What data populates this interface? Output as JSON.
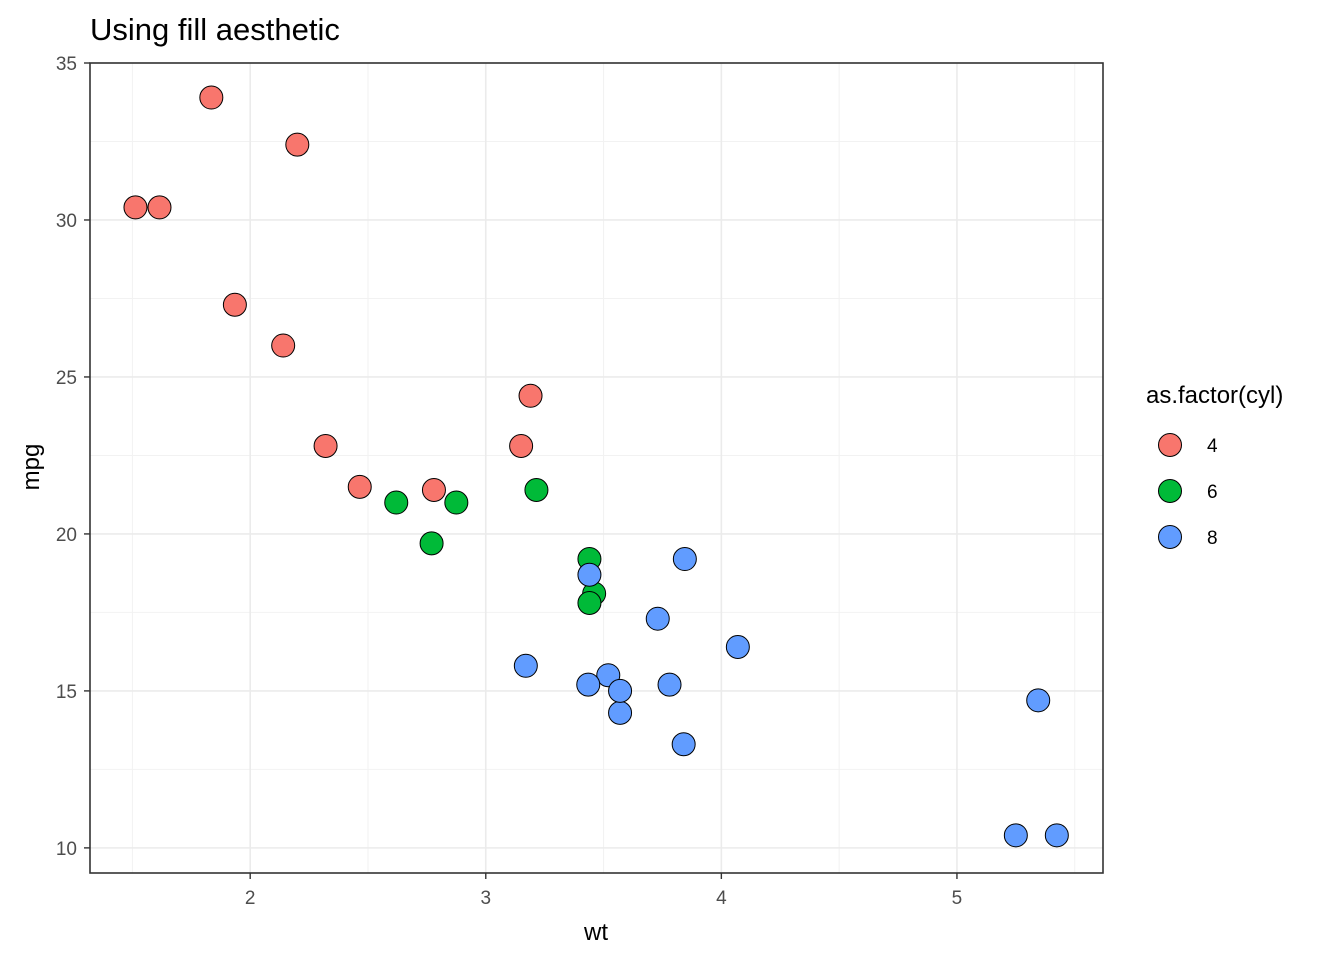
{
  "chart_data": {
    "type": "scatter",
    "title": "Using fill aesthetic",
    "xlabel": "wt",
    "ylabel": "mpg",
    "xlim": [
      1.32,
      5.62
    ],
    "ylim": [
      9.2,
      35.0
    ],
    "x_ticks": [
      2,
      3,
      4,
      5
    ],
    "y_ticks": [
      10,
      15,
      20,
      25,
      30,
      35
    ],
    "x_tick_labels": [
      "2",
      "3",
      "4",
      "5"
    ],
    "y_tick_labels": [
      "10",
      "15",
      "20",
      "25",
      "30",
      "35"
    ],
    "grid": true,
    "legend": {
      "title": "as.factor(cyl)",
      "position": "right"
    },
    "series": [
      {
        "name": "4",
        "color": "#F8766D",
        "points": [
          {
            "x": 2.32,
            "y": 22.8
          },
          {
            "x": 3.19,
            "y": 24.4
          },
          {
            "x": 3.15,
            "y": 22.8
          },
          {
            "x": 2.2,
            "y": 32.4
          },
          {
            "x": 1.615,
            "y": 30.4
          },
          {
            "x": 1.835,
            "y": 33.9
          },
          {
            "x": 2.465,
            "y": 21.5
          },
          {
            "x": 1.935,
            "y": 27.3
          },
          {
            "x": 2.14,
            "y": 26.0
          },
          {
            "x": 1.513,
            "y": 30.4
          },
          {
            "x": 2.78,
            "y": 21.4
          }
        ]
      },
      {
        "name": "6",
        "color": "#00BA38",
        "points": [
          {
            "x": 2.62,
            "y": 21.0
          },
          {
            "x": 2.875,
            "y": 21.0
          },
          {
            "x": 3.215,
            "y": 21.4
          },
          {
            "x": 3.46,
            "y": 18.1
          },
          {
            "x": 3.44,
            "y": 19.2
          },
          {
            "x": 3.44,
            "y": 17.8
          },
          {
            "x": 2.77,
            "y": 19.7
          }
        ]
      },
      {
        "name": "8",
        "color": "#619CFF",
        "points": [
          {
            "x": 3.44,
            "y": 18.7
          },
          {
            "x": 3.57,
            "y": 14.3
          },
          {
            "x": 4.07,
            "y": 16.4
          },
          {
            "x": 3.73,
            "y": 17.3
          },
          {
            "x": 3.78,
            "y": 15.2
          },
          {
            "x": 5.25,
            "y": 10.4
          },
          {
            "x": 5.424,
            "y": 10.4
          },
          {
            "x": 5.345,
            "y": 14.7
          },
          {
            "x": 3.52,
            "y": 15.5
          },
          {
            "x": 3.435,
            "y": 15.2
          },
          {
            "x": 3.84,
            "y": 13.3
          },
          {
            "x": 3.845,
            "y": 19.2
          },
          {
            "x": 3.17,
            "y": 15.8
          },
          {
            "x": 3.57,
            "y": 15.0
          }
        ]
      }
    ]
  }
}
